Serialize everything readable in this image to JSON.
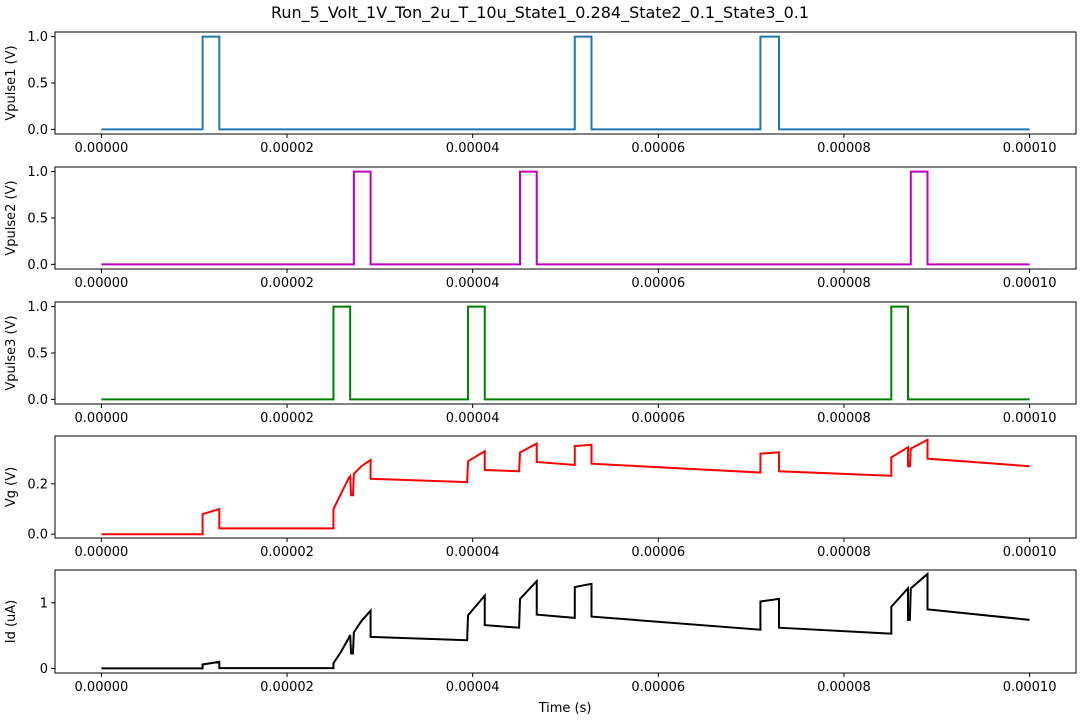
{
  "figure": {
    "title": "Run_5_Volt_1V_Ton_2u_T_10u_State1_0.284_State2_0.1_State3_0.1",
    "xlabel": "Time (s)"
  },
  "chart_data": [
    {
      "type": "line",
      "ylabel": "Vpulse1 (V)",
      "color": "#1f77b4",
      "xlim": [
        -5e-06,
        0.000105
      ],
      "ylim": [
        -0.05,
        1.05
      ],
      "xticks": [
        "0.00000",
        "0.00002",
        "0.00004",
        "0.00006",
        "0.00008",
        "0.00010"
      ],
      "yticks": [
        "0.0",
        "0.5",
        "1.0"
      ],
      "series": [
        {
          "x": [
            0,
            1.09e-05,
            1.09e-05,
            1.27e-05,
            1.27e-05,
            5.1e-05,
            5.1e-05,
            5.28e-05,
            5.28e-05,
            7.1e-05,
            7.1e-05,
            7.3e-05,
            7.3e-05,
            0.0001
          ],
          "y": [
            0,
            0,
            1,
            1,
            0,
            0,
            1,
            1,
            0,
            0,
            1,
            1,
            0,
            0
          ]
        }
      ]
    },
    {
      "type": "line",
      "ylabel": "Vpulse2 (V)",
      "color": "#bf00bf",
      "xlim": [
        -5e-06,
        0.000105
      ],
      "ylim": [
        -0.05,
        1.05
      ],
      "xticks": [
        "0.00000",
        "0.00002",
        "0.00004",
        "0.00006",
        "0.00008",
        "0.00010"
      ],
      "yticks": [
        "0.0",
        "0.5",
        "1.0"
      ],
      "series": [
        {
          "x": [
            0,
            2.72e-05,
            2.72e-05,
            2.9e-05,
            2.9e-05,
            4.51e-05,
            4.51e-05,
            4.69e-05,
            4.69e-05,
            8.72e-05,
            8.72e-05,
            8.9e-05,
            8.9e-05,
            0.0001
          ],
          "y": [
            0,
            0,
            1,
            1,
            0,
            0,
            1,
            1,
            0,
            0,
            1,
            1,
            0,
            0
          ]
        }
      ]
    },
    {
      "type": "line",
      "ylabel": "Vpulse3 (V)",
      "color": "#008000",
      "xlim": [
        -5e-06,
        0.000105
      ],
      "ylim": [
        -0.05,
        1.05
      ],
      "xticks": [
        "0.00000",
        "0.00002",
        "0.00004",
        "0.00006",
        "0.00008",
        "0.00010"
      ],
      "yticks": [
        "0.0",
        "0.5",
        "1.0"
      ],
      "series": [
        {
          "x": [
            0,
            2.5e-05,
            2.5e-05,
            2.68e-05,
            2.68e-05,
            3.95e-05,
            3.95e-05,
            4.13e-05,
            4.13e-05,
            8.51e-05,
            8.51e-05,
            8.69e-05,
            8.69e-05,
            0.0001
          ],
          "y": [
            0,
            0,
            1,
            1,
            0,
            0,
            1,
            1,
            0,
            0,
            1,
            1,
            0,
            0
          ]
        }
      ]
    },
    {
      "type": "line",
      "ylabel": "Vg (V)",
      "color": "#ff0000",
      "xlim": [
        -5e-06,
        0.000105
      ],
      "ylim": [
        -0.015,
        0.39
      ],
      "xticks": [
        "0.00000",
        "0.00002",
        "0.00004",
        "0.00006",
        "0.00008",
        "0.00010"
      ],
      "yticks": [
        "0.0",
        "0.2"
      ],
      "series": [
        {
          "x": [
            0,
            1.09e-05,
            1.09e-05,
            1.27e-05,
            1.27e-05,
            2.5e-05,
            2.5e-05,
            2.58e-05,
            2.66e-05,
            2.68e-05,
            2.69e-05,
            2.71e-05,
            2.72e-05,
            2.8e-05,
            2.9e-05,
            2.9e-05,
            3.94e-05,
            3.95e-05,
            4.13e-05,
            4.13e-05,
            4.5e-05,
            4.51e-05,
            4.69e-05,
            4.69e-05,
            5.1e-05,
            5.1e-05,
            5.28e-05,
            5.28e-05,
            7.1e-05,
            7.1e-05,
            7.3e-05,
            7.3e-05,
            8.51e-05,
            8.51e-05,
            8.69e-05,
            8.69e-05,
            8.71e-05,
            8.72e-05,
            8.9e-05,
            8.9e-05,
            0.0001
          ],
          "y": [
            0,
            0,
            0.08,
            0.1,
            0.023,
            0.023,
            0.1,
            0.16,
            0.22,
            0.23,
            0.155,
            0.155,
            0.24,
            0.27,
            0.295,
            0.22,
            0.207,
            0.29,
            0.33,
            0.255,
            0.25,
            0.325,
            0.36,
            0.287,
            0.275,
            0.35,
            0.355,
            0.28,
            0.245,
            0.32,
            0.325,
            0.25,
            0.232,
            0.305,
            0.345,
            0.27,
            0.27,
            0.34,
            0.375,
            0.3,
            0.27
          ]
        }
      ]
    },
    {
      "type": "line",
      "ylabel": "Id (uA)",
      "color": "#000000",
      "xlim": [
        -5e-06,
        0.000105
      ],
      "ylim": [
        -0.07,
        1.5
      ],
      "xticks": [
        "0.00000",
        "0.00002",
        "0.00004",
        "0.00006",
        "0.00008",
        "0.00010"
      ],
      "yticks": [
        "0",
        "1"
      ],
      "series": [
        {
          "x": [
            0,
            1.09e-05,
            1.09e-05,
            1.27e-05,
            1.27e-05,
            2.5e-05,
            2.5e-05,
            2.58e-05,
            2.66e-05,
            2.68e-05,
            2.69e-05,
            2.71e-05,
            2.72e-05,
            2.8e-05,
            2.9e-05,
            2.9e-05,
            3.94e-05,
            3.95e-05,
            4.13e-05,
            4.13e-05,
            4.5e-05,
            4.51e-05,
            4.69e-05,
            4.69e-05,
            5.1e-05,
            5.1e-05,
            5.28e-05,
            5.28e-05,
            7.1e-05,
            7.1e-05,
            7.3e-05,
            7.3e-05,
            8.51e-05,
            8.51e-05,
            8.69e-05,
            8.69e-05,
            8.71e-05,
            8.72e-05,
            8.9e-05,
            8.9e-05,
            0.0001
          ],
          "y": [
            0,
            0,
            0.06,
            0.1,
            0.005,
            0.005,
            0.08,
            0.25,
            0.45,
            0.51,
            0.23,
            0.23,
            0.55,
            0.72,
            0.88,
            0.48,
            0.43,
            0.81,
            1.11,
            0.66,
            0.62,
            1.06,
            1.33,
            0.82,
            0.77,
            1.24,
            1.29,
            0.79,
            0.59,
            1.02,
            1.06,
            0.62,
            0.53,
            0.94,
            1.22,
            0.74,
            0.74,
            1.22,
            1.44,
            0.9,
            0.74
          ]
        }
      ]
    }
  ]
}
